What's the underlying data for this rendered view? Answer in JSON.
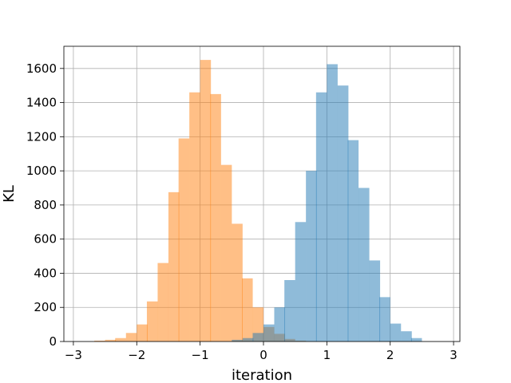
{
  "chart_data": {
    "type": "bar",
    "title": "",
    "xlabel": "iteration",
    "ylabel": "KL",
    "xlim": [
      -3.15,
      3.1
    ],
    "ylim": [
      0,
      1730
    ],
    "grid": true,
    "xticks": [
      -3,
      -2,
      -1,
      0,
      1,
      2,
      3
    ],
    "yticks": [
      0,
      200,
      400,
      600,
      800,
      1000,
      1200,
      1400,
      1600
    ],
    "bin_width": 0.167,
    "series": [
      {
        "color": "#ff7f0e",
        "alpha": 0.5,
        "bin_starts": [
          -2.67,
          -2.5,
          -2.34,
          -2.17,
          -2.0,
          -1.84,
          -1.67,
          -1.5,
          -1.34,
          -1.17,
          -1.0,
          -0.84,
          -0.67,
          -0.5,
          -0.34,
          -0.17,
          0.0,
          0.17,
          0.33,
          0.5
        ],
        "values": [
          5,
          10,
          20,
          50,
          100,
          235,
          460,
          875,
          1190,
          1460,
          1650,
          1450,
          1035,
          690,
          370,
          200,
          85,
          45,
          15,
          5
        ]
      },
      {
        "color": "#1f77b4",
        "alpha": 0.5,
        "bin_starts": [
          -0.5,
          -0.33,
          -0.17,
          0.0,
          0.17,
          0.33,
          0.5,
          0.67,
          0.83,
          1.0,
          1.17,
          1.33,
          1.5,
          1.67,
          1.83,
          2.0,
          2.17,
          2.33
        ],
        "values": [
          10,
          20,
          50,
          100,
          200,
          360,
          700,
          1000,
          1460,
          1625,
          1500,
          1180,
          900,
          475,
          260,
          105,
          60,
          20
        ]
      }
    ]
  }
}
